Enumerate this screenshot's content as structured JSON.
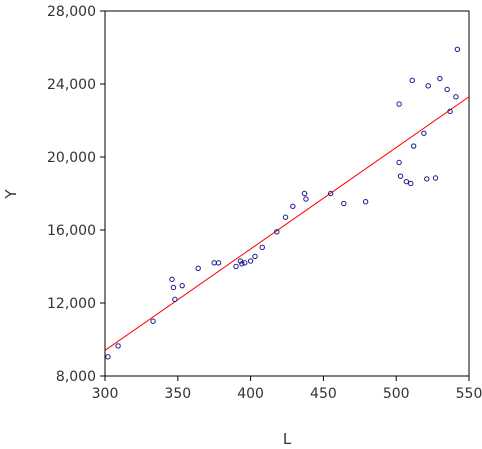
{
  "chart_data": {
    "type": "scatter",
    "title": "",
    "xlabel": "L",
    "ylabel": "Y",
    "xlim": [
      300,
      550
    ],
    "ylim": [
      8000,
      28000
    ],
    "x_ticks": [
      300,
      350,
      400,
      450,
      500,
      550
    ],
    "y_ticks": [
      8000,
      12000,
      16000,
      20000,
      24000,
      28000
    ],
    "x_tick_labels": [
      "300",
      "350",
      "400",
      "450",
      "500",
      "550"
    ],
    "y_tick_labels": [
      "8,000",
      "12,000",
      "16,000",
      "20,000",
      "24,000",
      "28,000"
    ],
    "grid": false,
    "legend": "none",
    "colors": {
      "points": "#1a1a8c",
      "fit_line": "#ff0000",
      "axes": "#000000"
    },
    "series": [
      {
        "type": "scatter",
        "x": [
          302,
          309,
          333,
          346,
          347,
          348,
          353,
          364,
          375,
          378,
          390,
          393,
          394,
          396,
          400,
          403,
          408,
          418,
          424,
          429,
          437,
          438,
          455,
          464,
          479,
          502,
          502,
          503,
          507,
          510,
          511,
          512,
          519,
          521,
          522,
          527,
          530,
          535,
          537,
          541,
          542
        ],
        "y": [
          9050,
          9650,
          11000,
          13300,
          12850,
          12200,
          12950,
          13900,
          14200,
          14200,
          14000,
          14300,
          14150,
          14200,
          14300,
          14550,
          15050,
          15900,
          16700,
          17300,
          18000,
          17700,
          18000,
          17450,
          17550,
          22900,
          19700,
          18950,
          18650,
          18550,
          24200,
          20600,
          21300,
          18800,
          23900,
          18850,
          24300,
          23700,
          22500,
          23300,
          25900
        ]
      },
      {
        "type": "line",
        "x": [
          300,
          550
        ],
        "y": [
          9400,
          23300
        ]
      }
    ]
  }
}
